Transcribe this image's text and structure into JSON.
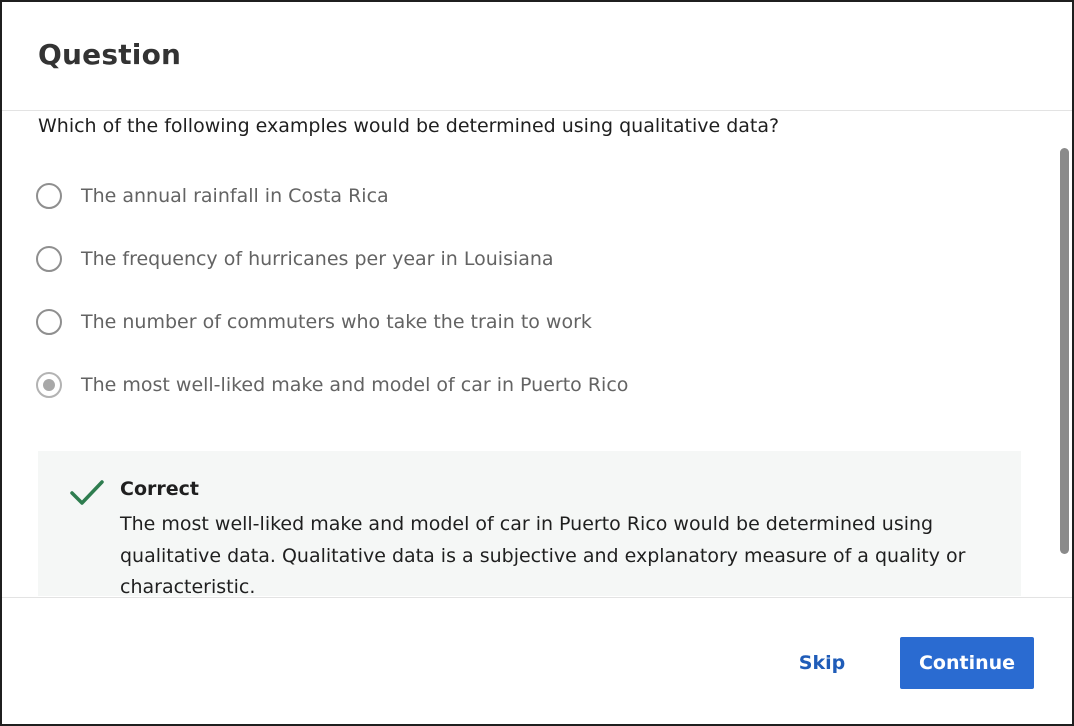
{
  "modal": {
    "title": "Question"
  },
  "question": {
    "text": "Which of the following examples would be determined using qualitative data?",
    "options": [
      {
        "label": "The annual rainfall in Costa Rica",
        "selected": false
      },
      {
        "label": "The frequency of hurricanes per year in Louisiana",
        "selected": false
      },
      {
        "label": "The number of commuters who take the train to work",
        "selected": false
      },
      {
        "label": "The most well-liked make and model of car in Puerto Rico",
        "selected": true
      }
    ]
  },
  "feedback": {
    "status": "Correct",
    "text": "The most well-liked make and model of car in Puerto Rico would be determined using qualitative data. Qualitative data is a subjective and explanatory measure of a quality or characteristic.",
    "icon": "checkmark-icon",
    "icon_color": "#2e7d4f"
  },
  "footer": {
    "skip_label": "Skip",
    "continue_label": "Continue"
  },
  "colors": {
    "accent": "#2a6bd1",
    "link": "#1f5cb8",
    "success": "#2e7d4f",
    "feedback_bg": "#f5f7f6"
  }
}
